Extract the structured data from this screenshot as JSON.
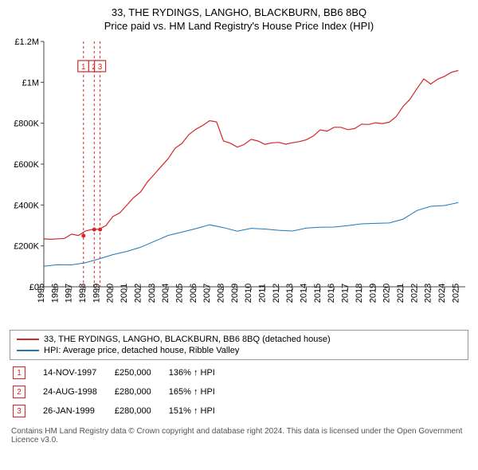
{
  "title_line1": "33, THE RYDINGS, LANGHO, BLACKBURN, BB6 8BQ",
  "title_line2": "Price paid vs. HM Land Registry's House Price Index (HPI)",
  "chart": {
    "type": "line",
    "x_domain_years": [
      1995,
      2025.5
    ],
    "y_domain": [
      0,
      1200000
    ],
    "y_ticks": [
      0,
      200000,
      400000,
      600000,
      800000,
      1000000,
      1200000
    ],
    "y_tick_labels": [
      "£0",
      "£200K",
      "£400K",
      "£600K",
      "£800K",
      "£1M",
      "£1.2M"
    ],
    "x_ticks_years": [
      1995,
      1996,
      1997,
      1998,
      1999,
      2000,
      2001,
      2002,
      2003,
      2004,
      2005,
      2006,
      2007,
      2008,
      2009,
      2010,
      2011,
      2012,
      2013,
      2014,
      2015,
      2016,
      2017,
      2018,
      2019,
      2020,
      2021,
      2022,
      2023,
      2024,
      2025
    ],
    "grid_color": "#ffffff",
    "axis_color": "#444444",
    "background_color": "#ffffff",
    "series": [
      {
        "label": "33, THE RYDINGS, LANGHO, BLACKBURN, BB6 8BQ (detached house)",
        "color": "#d62728",
        "stroke_width": 1.2,
        "years": [
          1995,
          1995.5,
          1996,
          1996.5,
          1997,
          1997.5,
          1998,
          1998.5,
          1999,
          1999.5,
          2000,
          2000.5,
          2001,
          2001.5,
          2002,
          2002.5,
          2003,
          2003.5,
          2004,
          2004.5,
          2005,
          2005.5,
          2006,
          2006.5,
          2007,
          2007.5,
          2008,
          2008.5,
          2009,
          2009.5,
          2010,
          2010.5,
          2011,
          2011.5,
          2012,
          2012.5,
          2013,
          2013.5,
          2014,
          2014.5,
          2015,
          2015.5,
          2016,
          2016.5,
          2017,
          2017.5,
          2018,
          2018.5,
          2019,
          2019.5,
          2020,
          2020.5,
          2021,
          2021.5,
          2022,
          2022.5,
          2023,
          2023.5,
          2024,
          2024.5,
          2025
        ],
        "values": [
          230000,
          232000,
          235000,
          240000,
          250000,
          258000,
          270000,
          278000,
          285000,
          300000,
          340000,
          365000,
          400000,
          430000,
          470000,
          510000,
          550000,
          590000,
          630000,
          670000,
          710000,
          740000,
          770000,
          790000,
          815000,
          800000,
          720000,
          700000,
          680000,
          700000,
          720000,
          710000,
          700000,
          705000,
          700000,
          705000,
          700000,
          710000,
          720000,
          740000,
          760000,
          770000,
          775000,
          780000,
          770000,
          775000,
          790000,
          800000,
          800000,
          795000,
          810000,
          830000,
          880000,
          920000,
          970000,
          1010000,
          1000000,
          1010000,
          1030000,
          1050000,
          1060000
        ]
      },
      {
        "label": "HPI: Average price, detached house, Ribble Valley",
        "color": "#1f77b4",
        "stroke_width": 1.0,
        "years": [
          1995,
          1996,
          1997,
          1998,
          1999,
          2000,
          2001,
          2002,
          2003,
          2004,
          2005,
          2006,
          2007,
          2008,
          2009,
          2010,
          2011,
          2012,
          2013,
          2014,
          2015,
          2016,
          2017,
          2018,
          2019,
          2020,
          2021,
          2022,
          2023,
          2024,
          2025
        ],
        "values": [
          100000,
          105000,
          108000,
          120000,
          135000,
          155000,
          175000,
          195000,
          220000,
          250000,
          270000,
          285000,
          300000,
          290000,
          275000,
          285000,
          280000,
          278000,
          275000,
          285000,
          290000,
          295000,
          300000,
          305000,
          310000,
          315000,
          330000,
          370000,
          395000,
          400000,
          410000
        ]
      }
    ],
    "markers": [
      {
        "n": "1",
        "year": 1997.87,
        "value": 250000,
        "color": "#d62728"
      },
      {
        "n": "2",
        "year": 1998.65,
        "value": 280000,
        "color": "#d62728"
      },
      {
        "n": "3",
        "year": 1999.07,
        "value": 280000,
        "color": "#d62728"
      }
    ]
  },
  "legend": [
    {
      "color": "#d62728",
      "label": "33, THE RYDINGS, LANGHO, BLACKBURN, BB6 8BQ (detached house)"
    },
    {
      "color": "#1f77b4",
      "label": "HPI: Average price, detached house, Ribble Valley"
    }
  ],
  "marker_rows": [
    {
      "n": "1",
      "color": "#d62728",
      "date": "14-NOV-1997",
      "price": "£250,000",
      "hpi": "136% ↑ HPI"
    },
    {
      "n": "2",
      "color": "#d62728",
      "date": "24-AUG-1998",
      "price": "£280,000",
      "hpi": "165% ↑ HPI"
    },
    {
      "n": "3",
      "color": "#d62728",
      "date": "26-JAN-1999",
      "price": "£280,000",
      "hpi": "151% ↑ HPI"
    }
  ],
  "footer": "Contains HM Land Registry data © Crown copyright and database right 2024. This data is licensed under the Open Government Licence v3.0."
}
